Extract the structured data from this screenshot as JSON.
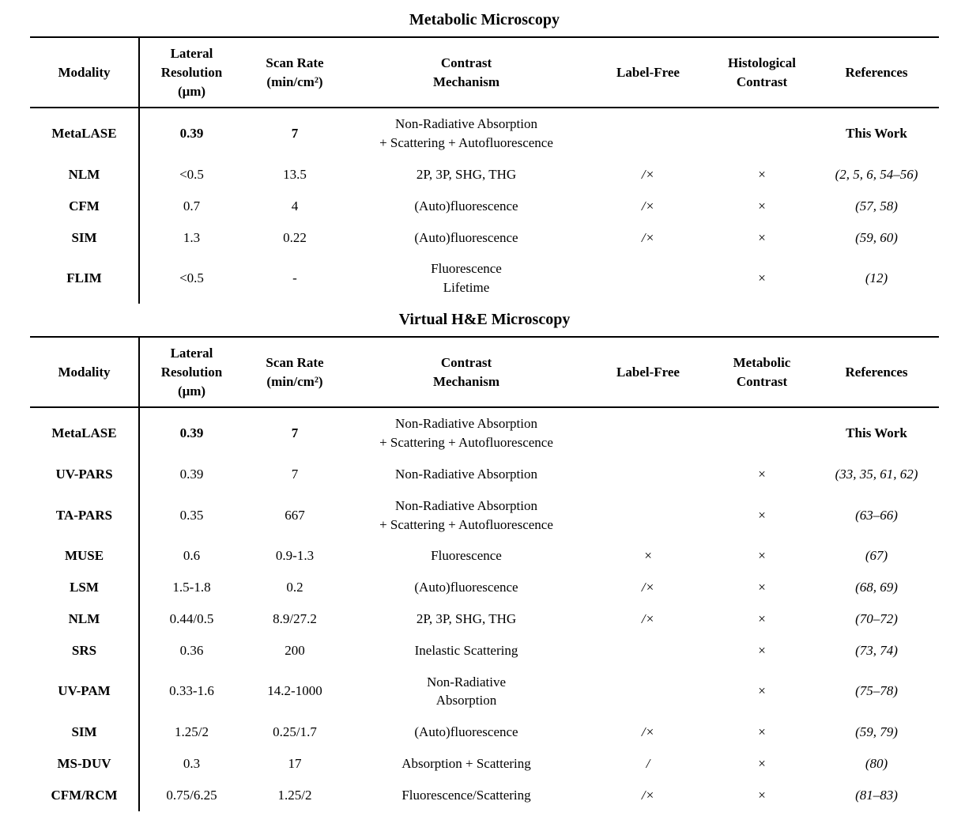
{
  "page": {
    "background_color": "#ffffff",
    "text_color": "#000000",
    "rule_color": "#000000"
  },
  "tables": [
    {
      "title": "Metabolic Microscopy",
      "headers": [
        "Modality",
        "Lateral\nResolution\n(μm)",
        "Scan Rate\n(min/cm²)",
        "Contrast\nMechanism",
        "Label-Free",
        "Histological\nContrast",
        "References"
      ],
      "rows": [
        [
          "MetaLASE",
          "0.39",
          "7",
          "Non-Radiative Absorption\n+ Scattering + Autofluorescence",
          "",
          "",
          "This Work"
        ],
        [
          "NLM",
          "<0.5",
          "13.5",
          "2P, 3P, SHG, THG",
          "/×",
          "×",
          "(2, 5, 6, 54–56)"
        ],
        [
          "CFM",
          "0.7",
          "4",
          "(Auto)fluorescence",
          "/×",
          "×",
          "(57, 58)"
        ],
        [
          "SIM",
          "1.3",
          "0.22",
          "(Auto)fluorescence",
          "/×",
          "×",
          "(59, 60)"
        ],
        [
          "FLIM",
          "<0.5",
          "-",
          "Fluorescence\nLifetime",
          "",
          "×",
          "(12)"
        ]
      ]
    },
    {
      "title": "Virtual H&E Microscopy",
      "headers": [
        "Modality",
        "Lateral\nResolution\n(μm)",
        "Scan Rate\n(min/cm²)",
        "Contrast\nMechanism",
        "Label-Free",
        "Metabolic\nContrast",
        "References"
      ],
      "rows": [
        [
          "MetaLASE",
          "0.39",
          "7",
          "Non-Radiative Absorption\n+ Scattering + Autofluorescence",
          "",
          "",
          "This Work"
        ],
        [
          "UV-PARS",
          "0.39",
          "7",
          "Non-Radiative Absorption",
          "",
          "×",
          "(33, 35, 61, 62)"
        ],
        [
          "TA-PARS",
          "0.35",
          "667",
          "Non-Radiative Absorption\n+ Scattering + Autofluorescence",
          "",
          "×",
          "(63–66)"
        ],
        [
          "MUSE",
          "0.6",
          "0.9-1.3",
          "Fluorescence",
          "×",
          "×",
          "(67)"
        ],
        [
          "LSM",
          "1.5-1.8",
          "0.2",
          "(Auto)fluorescence",
          "/×",
          "×",
          "(68, 69)"
        ],
        [
          "NLM",
          "0.44/0.5",
          "8.9/27.2",
          "2P, 3P, SHG, THG",
          "/×",
          "×",
          "(70–72)"
        ],
        [
          "SRS",
          "0.36",
          "200",
          "Inelastic Scattering",
          "",
          "×",
          "(73, 74)"
        ],
        [
          "UV-PAM",
          "0.33-1.6",
          "14.2-1000",
          "Non-Radiative\nAbsorption",
          "",
          "×",
          "(75–78)"
        ],
        [
          "SIM",
          "1.25/2",
          "0.25/1.7",
          "(Auto)fluorescence",
          "/×",
          "×",
          "(59, 79)"
        ],
        [
          "MS-DUV",
          "0.3",
          "17",
          "Absorption + Scattering",
          "/",
          "×",
          "(80)"
        ],
        [
          "CFM/RCM",
          "0.75/6.25",
          "1.25/2",
          "Fluorescence/Scattering",
          "/×",
          "×",
          "(81–83)"
        ]
      ]
    }
  ]
}
